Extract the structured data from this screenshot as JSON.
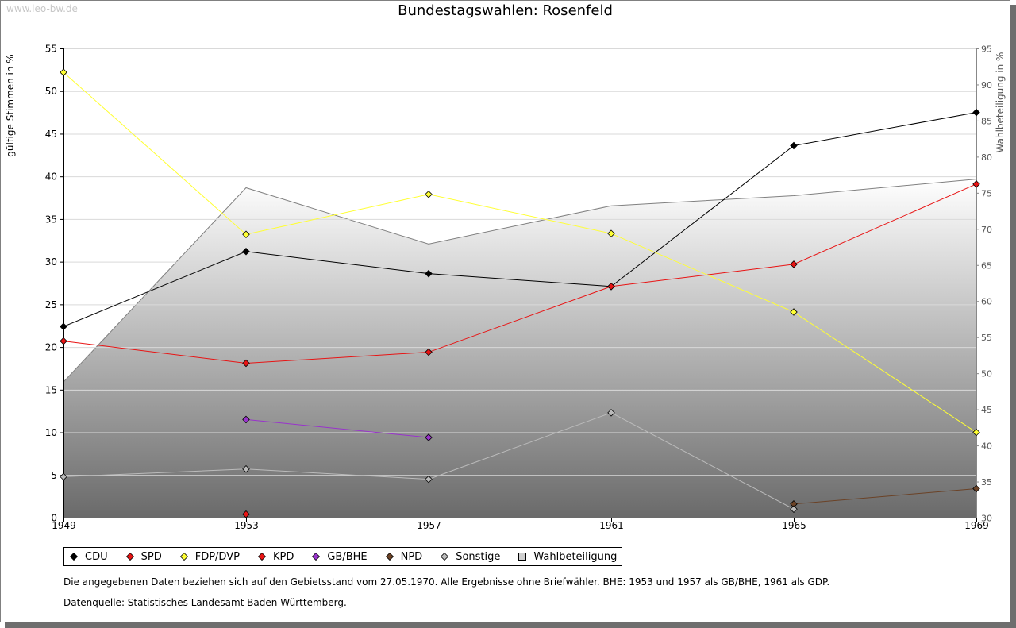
{
  "watermark": "www.leo-bw.de",
  "notes": {
    "line1": "Die angegebenen Daten beziehen sich auf den Gebietsstand vom 27.05.1970. Alle Ergebnisse ohne Briefwähler. BHE: 1953 und 1957 als GB/BHE, 1961 als GDP.",
    "line2": "Datenquelle: Statistisches Landesamt Baden-Württemberg."
  },
  "chart_data": {
    "type": "line",
    "title": "Bundestagswahlen: Rosenfeld",
    "ylabel": "gültige Stimmen in %",
    "y2label": "Wahlbeteiligung in %",
    "categories": [
      "1949",
      "1953",
      "1957",
      "1961",
      "1965",
      "1969"
    ],
    "ylim": [
      0,
      55
    ],
    "y2lim": [
      30,
      95
    ],
    "yticks": [
      0,
      5,
      10,
      15,
      20,
      25,
      30,
      35,
      40,
      45,
      50,
      55
    ],
    "y2ticks": [
      30,
      35,
      40,
      45,
      50,
      55,
      60,
      65,
      70,
      75,
      80,
      85,
      90,
      95
    ],
    "grid": true,
    "legend_position": "bottom",
    "series": [
      {
        "name": "CDU",
        "color": "#000000",
        "values": [
          22.4,
          31.2,
          28.6,
          27.1,
          43.6,
          47.5
        ]
      },
      {
        "name": "SPD",
        "color": "#e81414",
        "values": [
          20.7,
          18.1,
          19.4,
          27.1,
          29.7,
          39.1
        ]
      },
      {
        "name": "FDP/DVP",
        "color": "#ffff33",
        "values": [
          52.2,
          33.2,
          37.9,
          33.3,
          24.1,
          10.0
        ]
      },
      {
        "name": "KPD",
        "color": "#e81414",
        "values": [
          null,
          0.4,
          null,
          null,
          null,
          null
        ]
      },
      {
        "name": "GB/BHE",
        "color": "#9933cc",
        "values": [
          null,
          11.5,
          9.4,
          null,
          null,
          null
        ]
      },
      {
        "name": "NPD",
        "color": "#6b4226",
        "values": [
          null,
          null,
          null,
          null,
          1.6,
          3.4
        ]
      },
      {
        "name": "Sonstige",
        "color": "#bbbbbb",
        "values": [
          4.8,
          5.7,
          4.5,
          12.3,
          1.0,
          null
        ]
      },
      {
        "name": "Wahlbeteiligung",
        "color": "#808080",
        "axis": "right",
        "area": true,
        "values": [
          48.8,
          75.7,
          67.9,
          73.2,
          74.6,
          76.9
        ]
      }
    ]
  }
}
